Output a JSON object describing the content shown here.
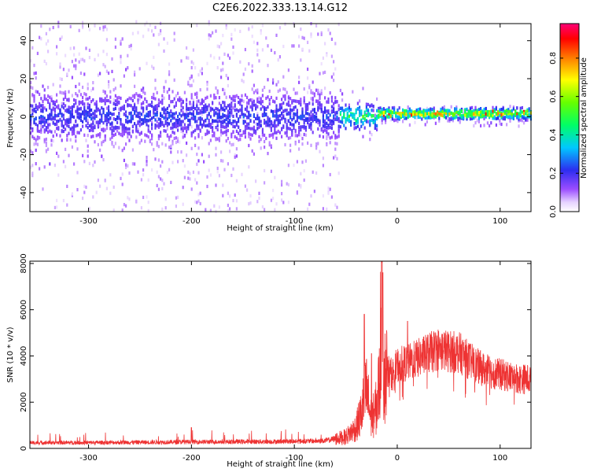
{
  "title": "C2E6.2022.333.13.14.G12",
  "chart_data": [
    {
      "type": "heatmap",
      "xlabel": "Height of straight line (km)",
      "ylabel": "Frequency (Hz)",
      "xlim": [
        -357,
        130
      ],
      "ylim": [
        -50,
        49
      ],
      "xticks": [
        -300,
        -200,
        -100,
        0,
        100
      ],
      "yticks": [
        -40,
        -20,
        0,
        20,
        40
      ],
      "colorbar": {
        "label": "Normalized spectral amplitude",
        "range": [
          0.0,
          0.98
        ],
        "ticks": [
          0.0,
          0.2,
          0.4,
          0.6,
          0.8
        ],
        "colormap": "rainbow (white-violet-blue-cyan-green-yellow-red-magenta)"
      },
      "description_of_regions": [
        {
          "x_range": [
            -357,
            -57
          ],
          "freq_center": 0,
          "core_halfwidth_hz": 12,
          "scatter_extent_hz": 50,
          "core_amplitude": 0.15
        },
        {
          "x_range": [
            -57,
            -20
          ],
          "freq_center": 0,
          "core_halfwidth_hz": 7,
          "scatter_extent_hz": 15,
          "core_amplitude": 0.4
        },
        {
          "x_range": [
            -20,
            130
          ],
          "freq_center": 1.5,
          "core_halfwidth_hz": 3,
          "scatter_extent_hz": 5,
          "core_amplitude": 0.6
        }
      ],
      "grid": false
    },
    {
      "type": "line",
      "xlabel": "Height of straight line (km)",
      "ylabel": "SNR (10 * v/v)",
      "xlim": [
        -357,
        130
      ],
      "ylim": [
        0,
        8100
      ],
      "xticks": [
        -300,
        -200,
        -100,
        0,
        100
      ],
      "yticks": [
        0,
        2000,
        4000,
        6000,
        8000
      ],
      "line_color": "#ee3333",
      "series_envelope": {
        "x": [
          -357,
          -300,
          -200,
          -100,
          -70,
          -50,
          -40,
          -35,
          -30,
          -25,
          -20,
          -17,
          -15,
          -13,
          -10,
          -5,
          0,
          10,
          20,
          30,
          40,
          50,
          60,
          70,
          80,
          90,
          100,
          110,
          120,
          130
        ],
        "y": [
          250,
          250,
          280,
          300,
          330,
          500,
          900,
          1500,
          2500,
          1200,
          1800,
          3000,
          7900,
          3000,
          3400,
          3200,
          3600,
          3700,
          3900,
          4100,
          4300,
          4200,
          4150,
          3800,
          3500,
          3300,
          3200,
          3100,
          3000,
          3000
        ]
      },
      "spikes": [
        {
          "x": -32,
          "y": 5800
        },
        {
          "x": -25,
          "y": 4100
        },
        {
          "x": -15,
          "y": 8050
        },
        {
          "x": -14,
          "y": 7600
        },
        {
          "x": 10,
          "y": 5500
        },
        {
          "x": -200,
          "y": 900
        }
      ],
      "grid": false
    }
  ]
}
